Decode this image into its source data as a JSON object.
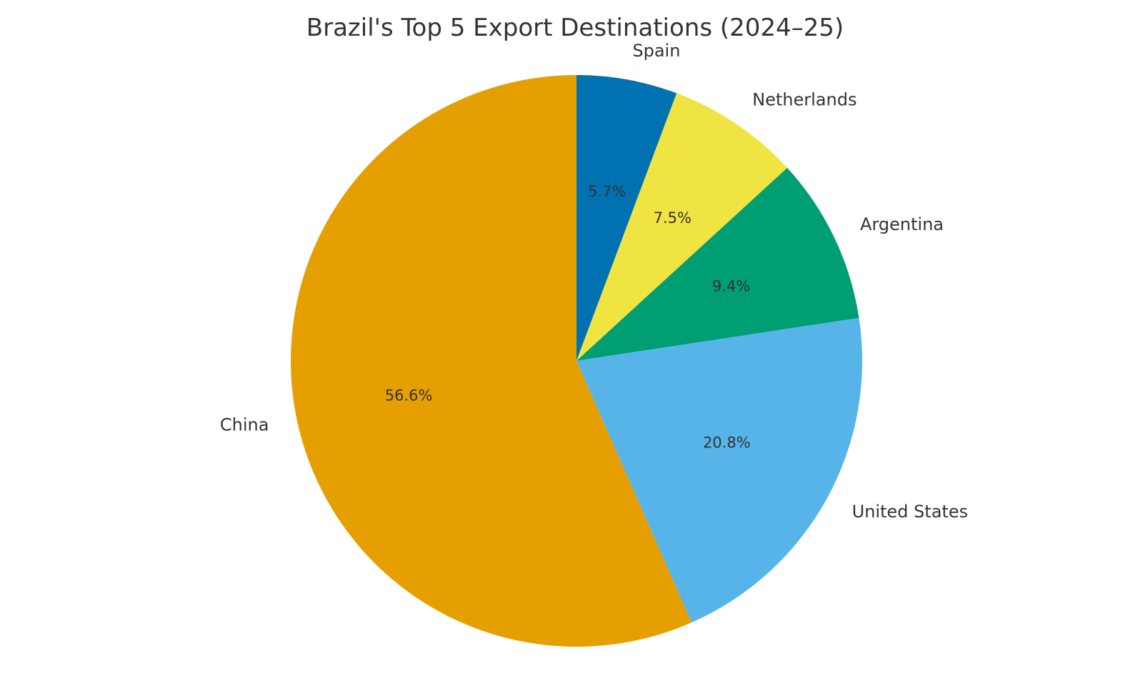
{
  "chart_data": {
    "type": "pie",
    "title": "Brazil's Top 5 Export Destinations (2024–25)",
    "start_angle_deg": 90,
    "direction": "clockwise",
    "slices": [
      {
        "label": "Spain",
        "value": 5.7,
        "pct_label": "5.7%",
        "color": "#0072B2"
      },
      {
        "label": "Netherlands",
        "value": 7.5,
        "pct_label": "7.5%",
        "color": "#F0E442"
      },
      {
        "label": "Argentina",
        "value": 9.4,
        "pct_label": "9.4%",
        "color": "#009E73"
      },
      {
        "label": "United States",
        "value": 20.8,
        "pct_label": "20.8%",
        "color": "#56B4E9"
      },
      {
        "label": "China",
        "value": 56.6,
        "pct_label": "56.6%",
        "color": "#E69F00"
      }
    ]
  }
}
